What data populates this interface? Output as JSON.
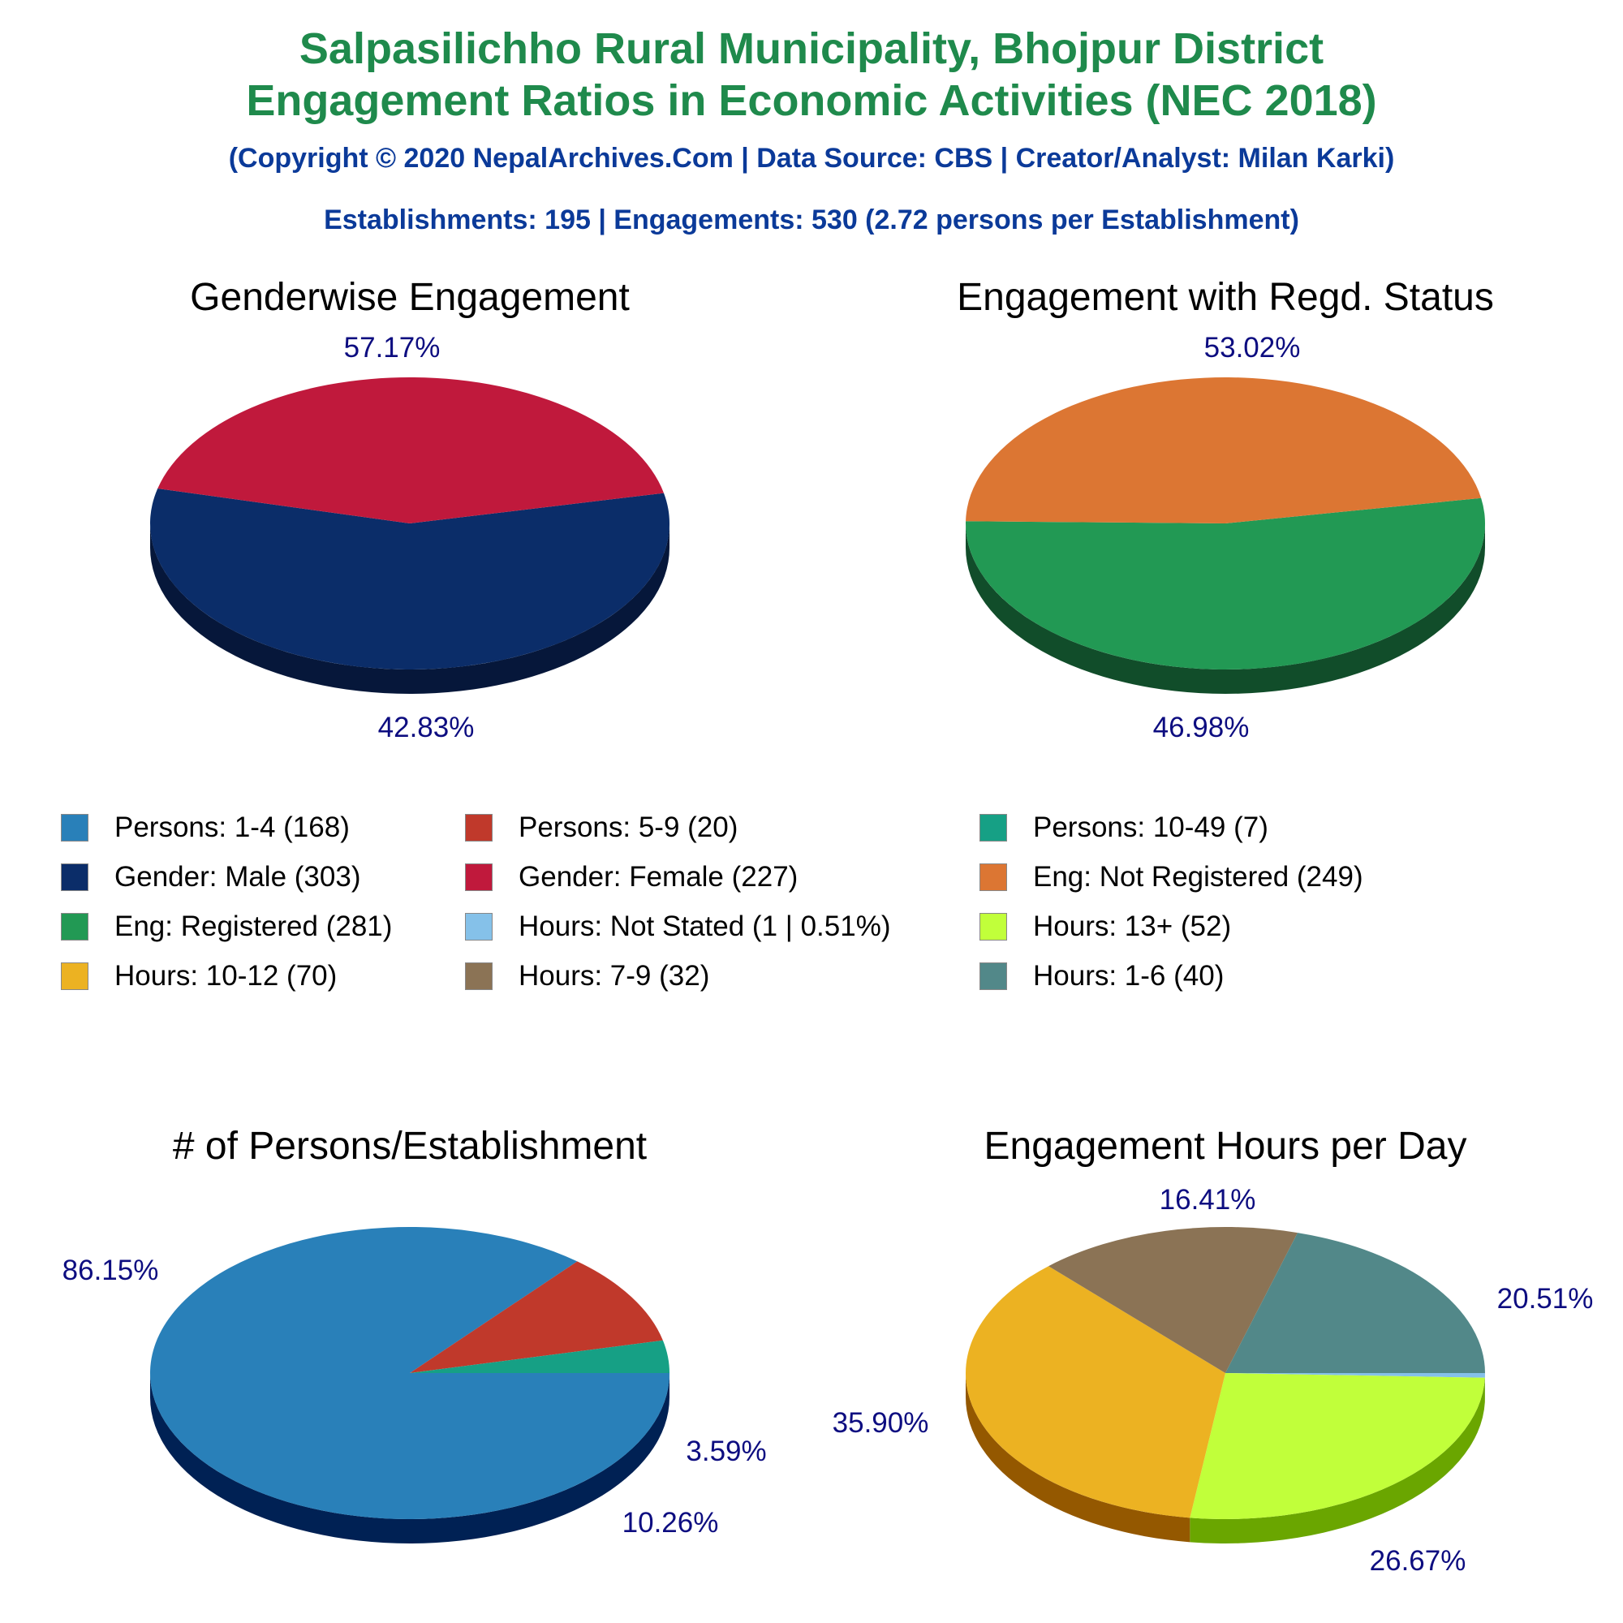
{
  "header": {
    "title_line1": "Salpasilichho Rural Municipality, Bhojpur District",
    "title_line2": "Engagement Ratios in Economic Activities (NEC 2018)",
    "copyright": "(Copyright © 2020 NepalArchives.Com | Data Source: CBS | Creator/Analyst: Milan Karki)",
    "summary": "Establishments: 195 | Engagements: 530 (2.72 persons per Establishment)",
    "title_color": "#1f8a4c",
    "subtitle_color": "#0b3a99"
  },
  "label_color": "#0d0d80",
  "chart_data": [
    {
      "type": "pie",
      "title": "Genderwise Engagement",
      "start_angle": -12,
      "slices": [
        {
          "name": "Gender: Male",
          "value": 303,
          "label": "57.17%",
          "color": "#0b2d69",
          "side": "#06173a"
        },
        {
          "name": "Gender: Female",
          "value": 227,
          "label": "42.83%",
          "color": "#c0193c",
          "side": "#6b0000"
        }
      ]
    },
    {
      "type": "pie",
      "title": "Engagement with Regd. Status",
      "start_angle": -10,
      "slices": [
        {
          "name": "Eng: Registered",
          "value": 281,
          "label": "53.02%",
          "color": "#229954",
          "side": "#114d2a"
        },
        {
          "name": "Eng: Not Registered",
          "value": 249,
          "label": "46.98%",
          "color": "#dc7633",
          "side": "#7a1a00"
        }
      ]
    },
    {
      "type": "pie",
      "title": "# of Persons/Establishment",
      "start_angle": 0,
      "slices": [
        {
          "name": "Persons: 1-4",
          "value": 168,
          "label": "86.15%",
          "color": "#2980b9",
          "side": "#002154"
        },
        {
          "name": "Persons: 5-9",
          "value": 20,
          "label": "10.26%",
          "color": "#c0392b",
          "side": "#6b0000"
        },
        {
          "name": "Persons: 10-49",
          "value": 7,
          "label": "3.59%",
          "color": "#16a085",
          "side": "#004d3b"
        }
      ]
    },
    {
      "type": "pie",
      "title": "Engagement Hours per Day",
      "start_angle": 0,
      "slices": [
        {
          "name": "Hours: Not Stated",
          "value": 1,
          "label": "",
          "color": "#85c1e9",
          "side": "#2c6ea8"
        },
        {
          "name": "Hours: 13+",
          "value": 52,
          "label": "26.67%",
          "color": "#c1ff3a",
          "side": "#6aa600"
        },
        {
          "name": "Hours: 10-12",
          "value": 70,
          "label": "35.90%",
          "color": "#ecb222",
          "side": "#945800"
        },
        {
          "name": "Hours: 7-9",
          "value": 32,
          "label": "16.41%",
          "color": "#8b7355",
          "side": "#4a3520"
        },
        {
          "name": "Hours: 1-6",
          "value": 40,
          "label": "20.51%",
          "color": "#528889",
          "side": "#2a4a4b"
        }
      ]
    }
  ],
  "legend": [
    {
      "text": "Persons: 1-4 (168)",
      "color": "#2980b9"
    },
    {
      "text": "Persons: 5-9 (20)",
      "color": "#c0392b"
    },
    {
      "text": "Persons: 10-49 (7)",
      "color": "#16a085"
    },
    {
      "text": "Gender: Male (303)",
      "color": "#0b2d69"
    },
    {
      "text": "Gender: Female (227)",
      "color": "#c0193c"
    },
    {
      "text": "Eng: Not Registered (249)",
      "color": "#dc7633"
    },
    {
      "text": "Eng: Registered (281)",
      "color": "#229954"
    },
    {
      "text": "Hours: Not Stated (1 | 0.51%)",
      "color": "#85c1e9"
    },
    {
      "text": "Hours: 13+ (52)",
      "color": "#c1ff3a"
    },
    {
      "text": "Hours: 10-12 (70)",
      "color": "#ecb222"
    },
    {
      "text": "Hours: 7-9 (32)",
      "color": "#8b7355"
    },
    {
      "text": "Hours: 1-6 (40)",
      "color": "#528889"
    }
  ]
}
